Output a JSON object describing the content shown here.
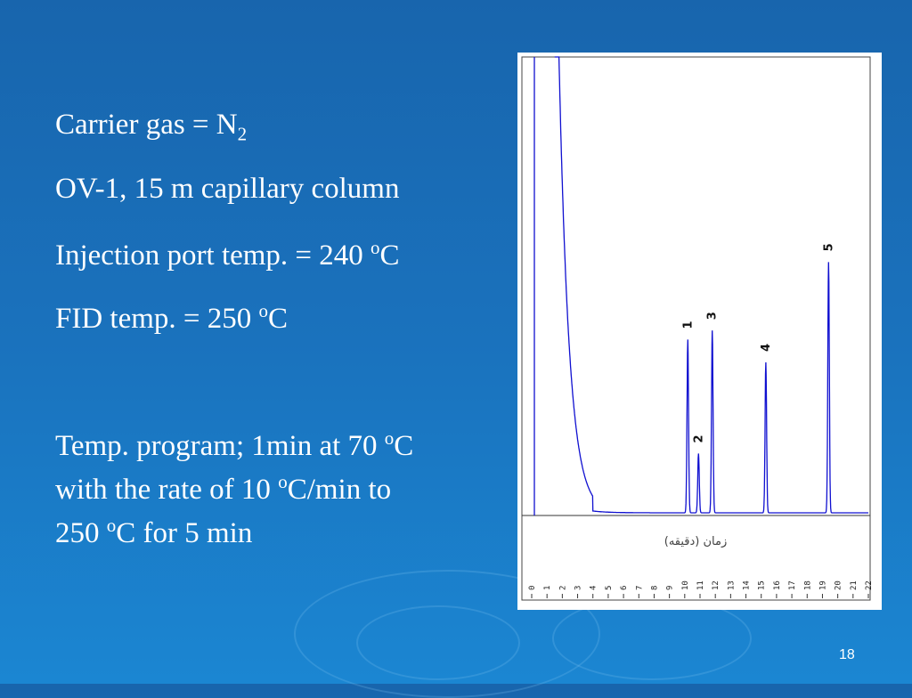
{
  "text": {
    "carrier": {
      "main": "Carrier gas = N",
      "sub": "2"
    },
    "column": "OV-1, 15 m capillary column",
    "injection": {
      "main": "Injection port temp. = 240 ",
      "sup": "o",
      "unit": "C"
    },
    "fid": {
      "main": "FID temp. = 250 ",
      "sup": "o",
      "unit": "C"
    },
    "program": [
      {
        "a": "Temp. program; 1min at 70 ",
        "sup": "o",
        "b": "C"
      },
      {
        "a": "with the rate of 10 ",
        "sup": "o",
        "b": "C/min to"
      },
      {
        "a": "250 ",
        "sup": "o",
        "b": "C for 5 min"
      }
    ]
  },
  "slide_number": "18",
  "chart_data": {
    "type": "line",
    "xlabel": "زمان (دقیقه)",
    "xlim": [
      0,
      22
    ],
    "x_ticks": [
      "0",
      "1",
      "2",
      "3",
      "4",
      "5",
      "6",
      "7",
      "8",
      "9",
      "10",
      "11",
      "12",
      "13",
      "14",
      "15",
      "16",
      "17",
      "18",
      "19",
      "20",
      "21",
      "22"
    ],
    "line_color": "#1010d0",
    "peaks": [
      {
        "label": "1",
        "time": 10.2,
        "height": 0.38
      },
      {
        "label": "2",
        "time": 10.9,
        "height": 0.13
      },
      {
        "label": "3",
        "time": 11.8,
        "height": 0.4
      },
      {
        "label": "4",
        "time": 15.3,
        "height": 0.33
      },
      {
        "label": "5",
        "time": 19.4,
        "height": 0.55
      }
    ]
  }
}
